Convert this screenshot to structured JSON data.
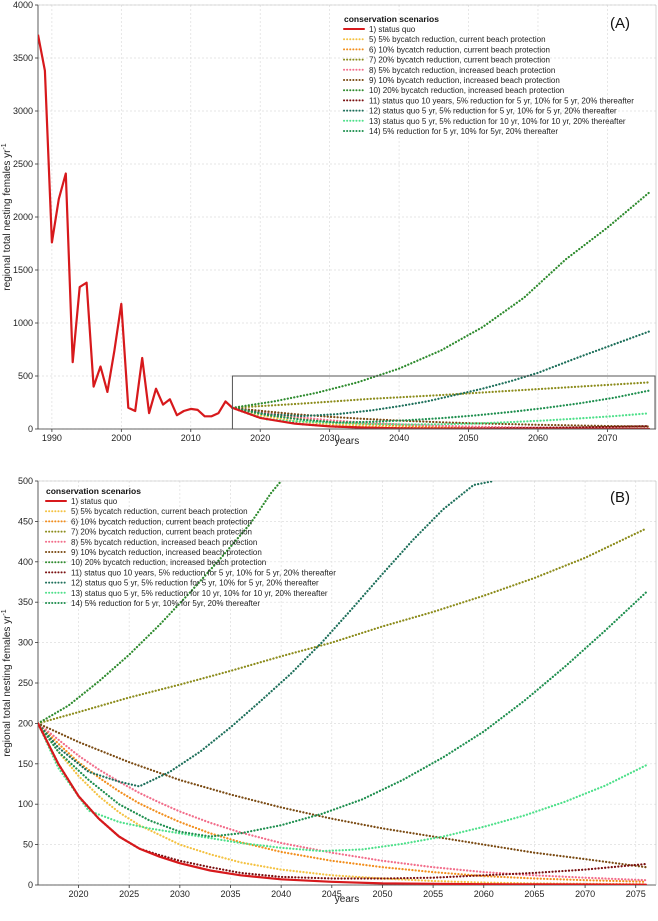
{
  "colors": {
    "status_quo": "#d7191c",
    "s5": "#f4c242",
    "s6": "#f28e1c",
    "s7": "#8c8c1c",
    "s8": "#f26d8a",
    "s9": "#7a4a12",
    "s10": "#2e8b2e",
    "s11": "#7a0f0f",
    "s12": "#1d6f5a",
    "s13": "#4ee08a",
    "s14": "#1f8f4f",
    "grid": "#dddddd",
    "axis": "#333333"
  },
  "chart_data": [
    {
      "panel": "(A)",
      "type": "line",
      "xlabel": "years",
      "ylabel": "regional total nesting females yr",
      "ylabel_superscript": "-1",
      "xlim": [
        1988,
        2077
      ],
      "ylim": [
        0,
        4000
      ],
      "x_ticks": [
        "1990",
        "2000",
        "2010",
        "2020",
        "2030",
        "2040",
        "2050",
        "2060",
        "2070"
      ],
      "y_ticks": [
        "0",
        "500",
        "1000",
        "1500",
        "2000",
        "2500",
        "3000",
        "3500",
        "4000"
      ],
      "legend_title": "conservation scenarios",
      "legend_position": "top-right",
      "inset_box": {
        "x": [
          2016,
          2077
        ],
        "y": [
          0,
          500
        ]
      },
      "observed": {
        "name": "1) status quo",
        "x": [
          1988,
          1989,
          1990,
          1991,
          1992,
          1993,
          1994,
          1995,
          1996,
          1997,
          1998,
          1999,
          2000,
          2001,
          2002,
          2003,
          2004,
          2005,
          2006,
          2007,
          2008,
          2009,
          2010,
          2011,
          2012,
          2013,
          2014,
          2015,
          2016
        ],
        "y": [
          3720,
          3380,
          1760,
          2170,
          2410,
          630,
          1340,
          1380,
          400,
          590,
          350,
          740,
          1180,
          200,
          170,
          670,
          150,
          380,
          230,
          280,
          130,
          170,
          190,
          180,
          120,
          120,
          150,
          260,
          200
        ]
      },
      "series": [
        {
          "name": "1) status quo",
          "type": "solid",
          "color_key": "status_quo",
          "x": [
            2016,
            2020,
            2025,
            2030,
            2035,
            2040,
            2045,
            2050,
            2060,
            2070,
            2076
          ],
          "y": [
            200,
            105,
            50,
            25,
            13,
            7,
            4,
            2,
            1,
            0.5,
            0.4
          ]
        },
        {
          "name": "5) 5% bycatch reduction, current beach protection",
          "type": "dotted",
          "color_key": "s5",
          "x": [
            2016,
            2020,
            2025,
            2030,
            2035,
            2040,
            2045,
            2050,
            2060,
            2070,
            2076
          ],
          "y": [
            200,
            130,
            75,
            45,
            27,
            16,
            10,
            6,
            3,
            1.5,
            1
          ]
        },
        {
          "name": "6) 10% bycatch reduction, current beach protection",
          "type": "dotted",
          "color_key": "s6",
          "x": [
            2016,
            2020,
            2025,
            2030,
            2035,
            2040,
            2045,
            2050,
            2060,
            2070,
            2076
          ],
          "y": [
            200,
            150,
            100,
            68,
            46,
            32,
            22,
            16,
            8,
            5,
            4
          ]
        },
        {
          "name": "7) 20% bycatch reduction, current beach protection",
          "type": "dotted",
          "color_key": "s7",
          "x": [
            2016,
            2026,
            2036,
            2046,
            2056,
            2066,
            2076
          ],
          "y": [
            200,
            240,
            285,
            320,
            360,
            400,
            440
          ]
        },
        {
          "name": "8) 5% bycatch reduction, increased beach protection",
          "type": "dotted",
          "color_key": "s8",
          "x": [
            2016,
            2020,
            2025,
            2030,
            2035,
            2040,
            2045,
            2050,
            2060,
            2070,
            2076
          ],
          "y": [
            200,
            160,
            115,
            82,
            60,
            44,
            32,
            23,
            12,
            7,
            5
          ]
        },
        {
          "name": "9) 10% bycatch reduction, increased beach protection",
          "type": "dotted",
          "color_key": "s9",
          "x": [
            2016,
            2020,
            2025,
            2030,
            2035,
            2040,
            2045,
            2050,
            2060,
            2070,
            2076
          ],
          "y": [
            200,
            172,
            140,
            115,
            95,
            79,
            66,
            55,
            40,
            28,
            24
          ]
        },
        {
          "name": "10) 20% bycatch reduction, increased beach protection",
          "type": "dotted",
          "color_key": "s10",
          "x": [
            2016,
            2022,
            2028,
            2034,
            2040,
            2046,
            2052,
            2058,
            2064,
            2070,
            2076
          ],
          "y": [
            200,
            260,
            340,
            440,
            570,
            740,
            960,
            1240,
            1600,
            1900,
            2230
          ]
        },
        {
          "name": "11) status quo 10 years, 5% reduction for 5 yr, 10% for 5 yr, 20% thereafter",
          "type": "dotted",
          "color_key": "s11",
          "x": [
            2016,
            2020,
            2026,
            2031,
            2036,
            2040,
            2045,
            2050,
            2055,
            2060,
            2065,
            2070,
            2076
          ],
          "y": [
            200,
            105,
            45,
            22,
            12,
            8,
            6,
            6,
            8,
            11,
            15,
            20,
            27
          ]
        },
        {
          "name": "12) status quo 5 yr, 5% reduction for 5 yr, 10% for 5 yr, 20% thereafter",
          "type": "dotted",
          "color_key": "s12",
          "x": [
            2016,
            2021,
            2026,
            2031,
            2036,
            2040,
            2044,
            2048,
            2052,
            2056,
            2060,
            2066,
            2071,
            2076
          ],
          "y": [
            200,
            140,
            122,
            140,
            175,
            215,
            260,
            320,
            380,
            450,
            530,
            680,
            800,
            920
          ]
        },
        {
          "name": "13) status quo 5 yr, 5% reduction for 10 yr, 10% for 10 yr, 20% thereafter",
          "type": "dotted",
          "color_key": "s13",
          "x": [
            2016,
            2021,
            2026,
            2031,
            2036,
            2041,
            2046,
            2051,
            2056,
            2061,
            2066,
            2071,
            2076
          ],
          "y": [
            200,
            90,
            70,
            58,
            48,
            42,
            44,
            52,
            65,
            80,
            100,
            122,
            148
          ]
        },
        {
          "name": "14) 5% reduction for 5 yr, 10% for 5yr, 20% thereafter",
          "type": "dotted",
          "color_key": "s14",
          "x": [
            2016,
            2021,
            2026,
            2031,
            2036,
            2041,
            2046,
            2051,
            2056,
            2061,
            2066,
            2071,
            2076
          ],
          "y": [
            200,
            130,
            88,
            62,
            68,
            82,
            102,
            128,
            160,
            198,
            242,
            295,
            362
          ]
        }
      ]
    },
    {
      "panel": "(B)",
      "type": "line",
      "xlabel": "years",
      "ylabel": "regional total nesting females yr",
      "ylabel_superscript": "-1",
      "xlim": [
        2016,
        2077
      ],
      "ylim": [
        0,
        500
      ],
      "x_ticks": [
        "2020",
        "2025",
        "2030",
        "2035",
        "2040",
        "2045",
        "2050",
        "2055",
        "2060",
        "2065",
        "2070",
        "2075"
      ],
      "y_ticks": [
        "0",
        "50",
        "100",
        "150",
        "200",
        "250",
        "300",
        "350",
        "400",
        "450",
        "500"
      ],
      "legend_title": "conservation scenarios",
      "legend_position": "top-left",
      "series": [
        {
          "name": "1) status quo",
          "type": "solid",
          "color_key": "status_quo",
          "x": [
            2016,
            2018,
            2020,
            2022,
            2024,
            2026,
            2028,
            2030,
            2033,
            2036,
            2040,
            2045,
            2050,
            2055,
            2060,
            2065,
            2070,
            2076
          ],
          "y": [
            200,
            150,
            110,
            82,
            60,
            45,
            35,
            27,
            18,
            12,
            7,
            4,
            2,
            1.5,
            1,
            0.8,
            0.6,
            0.4
          ]
        },
        {
          "name": "5) 5% bycatch reduction, current beach protection",
          "type": "dotted",
          "color_key": "s5",
          "x": [
            2016,
            2018,
            2020,
            2022,
            2024,
            2026,
            2028,
            2030,
            2033,
            2036,
            2040,
            2045,
            2050,
            2055,
            2060,
            2065,
            2070,
            2076
          ],
          "y": [
            200,
            165,
            135,
            110,
            90,
            74,
            62,
            50,
            38,
            28,
            19,
            12,
            8,
            5,
            3,
            2,
            1.5,
            1
          ]
        },
        {
          "name": "6) 10% bycatch reduction, current beach protection",
          "type": "dotted",
          "color_key": "s6",
          "x": [
            2016,
            2018,
            2020,
            2022,
            2024,
            2026,
            2028,
            2030,
            2033,
            2036,
            2040,
            2045,
            2050,
            2055,
            2060,
            2065,
            2070,
            2076
          ],
          "y": [
            200,
            175,
            152,
            133,
            116,
            101,
            89,
            78,
            64,
            53,
            41,
            30,
            22,
            16,
            11,
            8,
            6,
            4
          ]
        },
        {
          "name": "7) 20% bycatch reduction, current beach protection",
          "type": "dotted",
          "color_key": "s7",
          "x": [
            2016,
            2020,
            2025,
            2030,
            2035,
            2040,
            2045,
            2050,
            2055,
            2060,
            2065,
            2070,
            2076
          ],
          "y": [
            200,
            214,
            232,
            248,
            265,
            283,
            300,
            320,
            338,
            358,
            380,
            405,
            441
          ]
        },
        {
          "name": "8) 5% bycatch reduction, increased beach protection",
          "type": "dotted",
          "color_key": "s8",
          "x": [
            2016,
            2018,
            2020,
            2022,
            2024,
            2026,
            2028,
            2030,
            2033,
            2036,
            2040,
            2045,
            2050,
            2055,
            2060,
            2065,
            2070,
            2076
          ],
          "y": [
            200,
            180,
            160,
            143,
            128,
            114,
            102,
            91,
            77,
            65,
            52,
            40,
            30,
            22,
            16,
            12,
            9,
            6
          ]
        },
        {
          "name": "9) 10% bycatch reduction, increased beach protection",
          "type": "dotted",
          "color_key": "s9",
          "x": [
            2016,
            2020,
            2025,
            2030,
            2035,
            2040,
            2045,
            2050,
            2055,
            2060,
            2065,
            2070,
            2076
          ],
          "y": [
            200,
            177,
            152,
            130,
            112,
            96,
            82,
            70,
            60,
            50,
            40,
            32,
            22
          ]
        },
        {
          "name": "10) 20% bycatch reduction, increased beach protection",
          "type": "dotted",
          "color_key": "s10",
          "x": [
            2016,
            2019,
            2022,
            2025,
            2028,
            2031,
            2034,
            2037,
            2039,
            2040
          ],
          "y": [
            200,
            222,
            252,
            285,
            322,
            362,
            404,
            448,
            485,
            500
          ]
        },
        {
          "name": "11) status quo 10 years, 5% reduction for 5 yr, 10% for 5 yr, 20% thereafter",
          "type": "dotted",
          "color_key": "s11",
          "x": [
            2016,
            2018,
            2020,
            2022,
            2024,
            2026,
            2028,
            2030,
            2033,
            2036,
            2040,
            2045,
            2050,
            2055,
            2060,
            2065,
            2070,
            2076
          ],
          "y": [
            200,
            150,
            110,
            82,
            60,
            45,
            37,
            30,
            22,
            15,
            10,
            8,
            8,
            9,
            12,
            15,
            19,
            26
          ]
        },
        {
          "name": "12) status quo 5 yr, 5% reduction for 5 yr, 10% for 5 yr, 20% thereafter",
          "type": "dotted",
          "color_key": "s12",
          "x": [
            2016,
            2018,
            2021,
            2024,
            2026,
            2029,
            2032,
            2035,
            2038,
            2041,
            2044,
            2047,
            2050,
            2053,
            2056,
            2059,
            2061
          ],
          "y": [
            200,
            170,
            140,
            128,
            122,
            140,
            165,
            195,
            228,
            262,
            300,
            342,
            385,
            427,
            465,
            495,
            500
          ]
        },
        {
          "name": "13) status quo 5 yr, 5% reduction for 10 yr, 10% for 10 yr, 20% thereafter",
          "type": "dotted",
          "color_key": "s13",
          "x": [
            2016,
            2018,
            2021,
            2024,
            2027,
            2030,
            2033,
            2036,
            2040,
            2044,
            2048,
            2052,
            2056,
            2060,
            2064,
            2068,
            2072,
            2076
          ],
          "y": [
            200,
            145,
            92,
            78,
            70,
            64,
            58,
            52,
            46,
            42,
            44,
            51,
            60,
            72,
            86,
            103,
            123,
            148
          ]
        },
        {
          "name": "14) 5% reduction for 5 yr, 10% for 5yr, 20% thereafter",
          "type": "dotted",
          "color_key": "s14",
          "x": [
            2016,
            2018,
            2021,
            2024,
            2027,
            2030,
            2033,
            2036,
            2040,
            2044,
            2048,
            2052,
            2056,
            2060,
            2064,
            2068,
            2072,
            2076
          ],
          "y": [
            200,
            165,
            130,
            100,
            80,
            66,
            60,
            64,
            74,
            88,
            106,
            130,
            158,
            190,
            228,
            270,
            315,
            362
          ]
        }
      ]
    }
  ]
}
